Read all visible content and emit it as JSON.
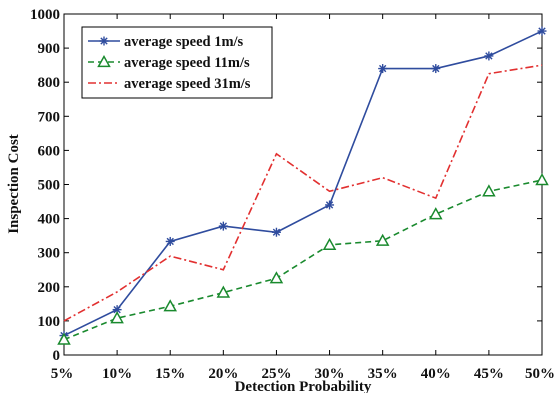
{
  "chart_data": {
    "type": "line",
    "x": [
      "5%",
      "10%",
      "15%",
      "20%",
      "25%",
      "30%",
      "35%",
      "40%",
      "45%",
      "50%"
    ],
    "xlabel": "Detection Probability",
    "ylabel": "Inspection Cost",
    "ylim": [
      0,
      1000
    ],
    "yticks": [
      "0",
      "100",
      "200",
      "300",
      "400",
      "500",
      "600",
      "700",
      "800",
      "900",
      "1000"
    ],
    "grid": false,
    "legend_position": "top-left",
    "series": [
      {
        "name": "average speed 1m/s",
        "color": "#2f4c9e",
        "line_style": "solid",
        "marker": "asterisk",
        "values": [
          57,
          133,
          333,
          378,
          360,
          440,
          840,
          840,
          877,
          950
        ]
      },
      {
        "name": "average speed 11m/s",
        "color": "#1a8a2e",
        "line_style": "dashed",
        "marker": "triangle",
        "values": [
          45,
          108,
          143,
          183,
          225,
          323,
          335,
          413,
          480,
          513
        ]
      },
      {
        "name": "average speed 31m/s",
        "color": "#e23030",
        "line_style": "dashdot",
        "marker": "none",
        "values": [
          100,
          185,
          290,
          250,
          590,
          480,
          520,
          460,
          825,
          850
        ]
      }
    ]
  }
}
